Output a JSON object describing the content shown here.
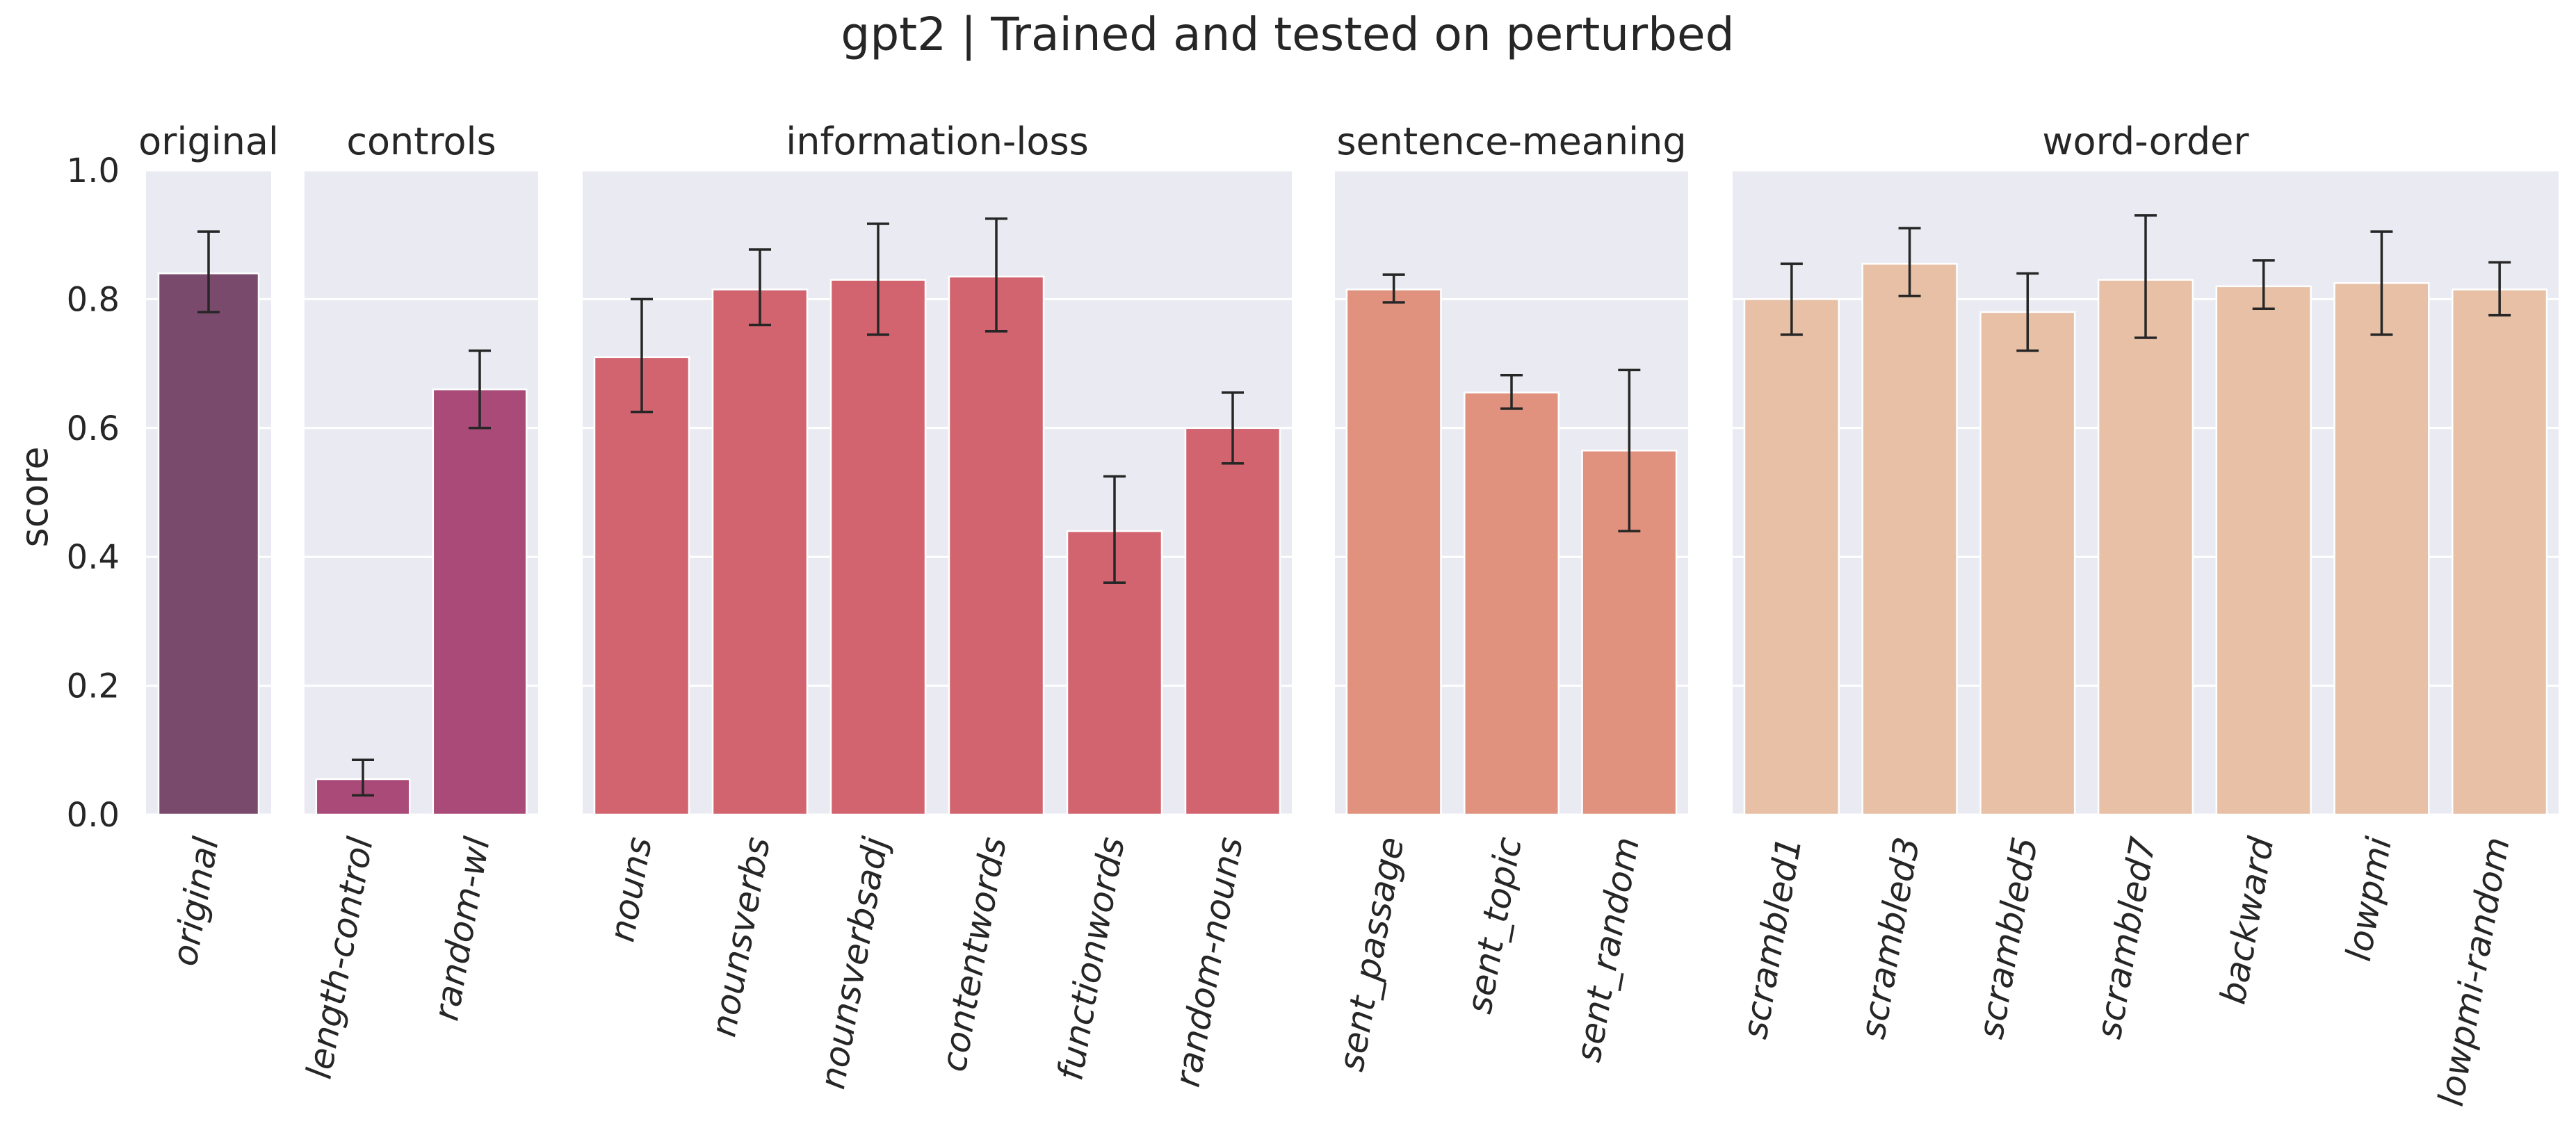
{
  "chart_data": {
    "type": "bar",
    "title": "gpt2 | Trained and tested on perturbed",
    "ylabel": "score",
    "ylim": [
      0,
      1
    ],
    "yticks": [
      0.0,
      0.2,
      0.4,
      0.6,
      0.8,
      1.0
    ],
    "ytick_labels": [
      "0.0",
      "0.2",
      "0.4",
      "0.6",
      "0.8",
      "1.0"
    ],
    "grid": true,
    "panels": [
      {
        "title": "original",
        "color": "#7a4a6c",
        "categories": [
          "original"
        ],
        "values": [
          0.84
        ],
        "err_low": [
          0.78
        ],
        "err_high": [
          0.905
        ]
      },
      {
        "title": "controls",
        "color": "#a94a78",
        "categories": [
          "length-control",
          "random-wl"
        ],
        "values": [
          0.055,
          0.66
        ],
        "err_low": [
          0.03,
          0.6
        ],
        "err_high": [
          0.085,
          0.72
        ]
      },
      {
        "title": "information-loss",
        "color": "#d1646f",
        "categories": [
          "nouns",
          "nounsverbs",
          "nounsverbsadj",
          "contentwords",
          "functionwords",
          "random-nouns"
        ],
        "values": [
          0.71,
          0.815,
          0.83,
          0.835,
          0.44,
          0.6
        ],
        "err_low": [
          0.625,
          0.76,
          0.745,
          0.75,
          0.36,
          0.545
        ],
        "err_high": [
          0.8,
          0.877,
          0.917,
          0.925,
          0.525,
          0.655
        ]
      },
      {
        "title": "sentence-meaning",
        "color": "#e0927e",
        "categories": [
          "sent_passage",
          "sent_topic",
          "sent_random"
        ],
        "values": [
          0.815,
          0.655,
          0.565
        ],
        "err_low": [
          0.795,
          0.63,
          0.44
        ],
        "err_high": [
          0.838,
          0.682,
          0.69
        ]
      },
      {
        "title": "word-order",
        "color": "#e8c0a6",
        "categories": [
          "scrambled1",
          "scrambled3",
          "scrambled5",
          "scrambled7",
          "backward",
          "lowpmi",
          "lowpmi-random"
        ],
        "values": [
          0.8,
          0.855,
          0.78,
          0.83,
          0.82,
          0.825,
          0.815
        ],
        "err_low": [
          0.745,
          0.805,
          0.72,
          0.74,
          0.785,
          0.745,
          0.775
        ],
        "err_high": [
          0.855,
          0.91,
          0.84,
          0.93,
          0.86,
          0.905,
          0.857
        ]
      }
    ]
  }
}
